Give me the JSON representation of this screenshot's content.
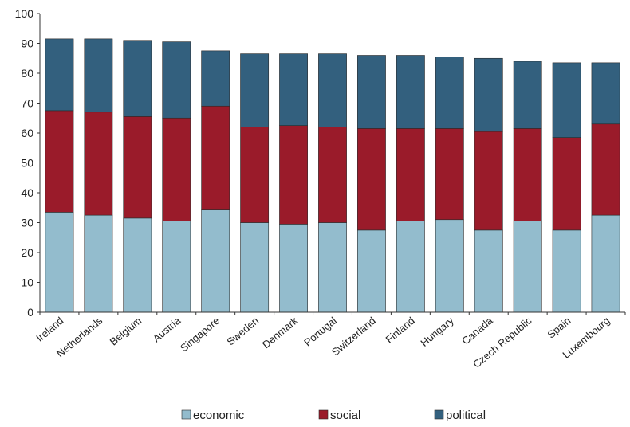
{
  "chart_data": {
    "type": "bar",
    "stacked": true,
    "categories": [
      "Ireland",
      "Netherlands",
      "Belgium",
      "Austria",
      "Singapore",
      "Sweden",
      "Denmark",
      "Portugal",
      "Switzerland",
      "Finland",
      "Hungary",
      "Canada",
      "Czech Republic",
      "Spain",
      "Luxembourg"
    ],
    "series": [
      {
        "name": "economic",
        "color": "#93bccd",
        "values": [
          33.5,
          32.5,
          31.5,
          30.5,
          34.5,
          30,
          29.5,
          30,
          27.5,
          30.5,
          31,
          27.5,
          30.5,
          27.5,
          32.5
        ]
      },
      {
        "name": "social",
        "color": "#9a1b2a",
        "values": [
          34,
          34.5,
          34,
          34.5,
          34.5,
          32,
          33,
          32,
          34,
          31,
          30.5,
          33,
          31,
          31,
          30.5
        ]
      },
      {
        "name": "political",
        "color": "#33607e",
        "values": [
          24,
          24.5,
          25.5,
          25.5,
          18.5,
          24.5,
          24,
          24.5,
          24.5,
          24.5,
          24,
          24.5,
          22.5,
          25,
          20.5
        ]
      }
    ],
    "ylim": [
      0,
      100
    ],
    "yticks": [
      "0",
      "10",
      "20",
      "30",
      "40",
      "50",
      "60",
      "70",
      "80",
      "90",
      "100"
    ],
    "grid": false,
    "legend_position": "bottom"
  }
}
